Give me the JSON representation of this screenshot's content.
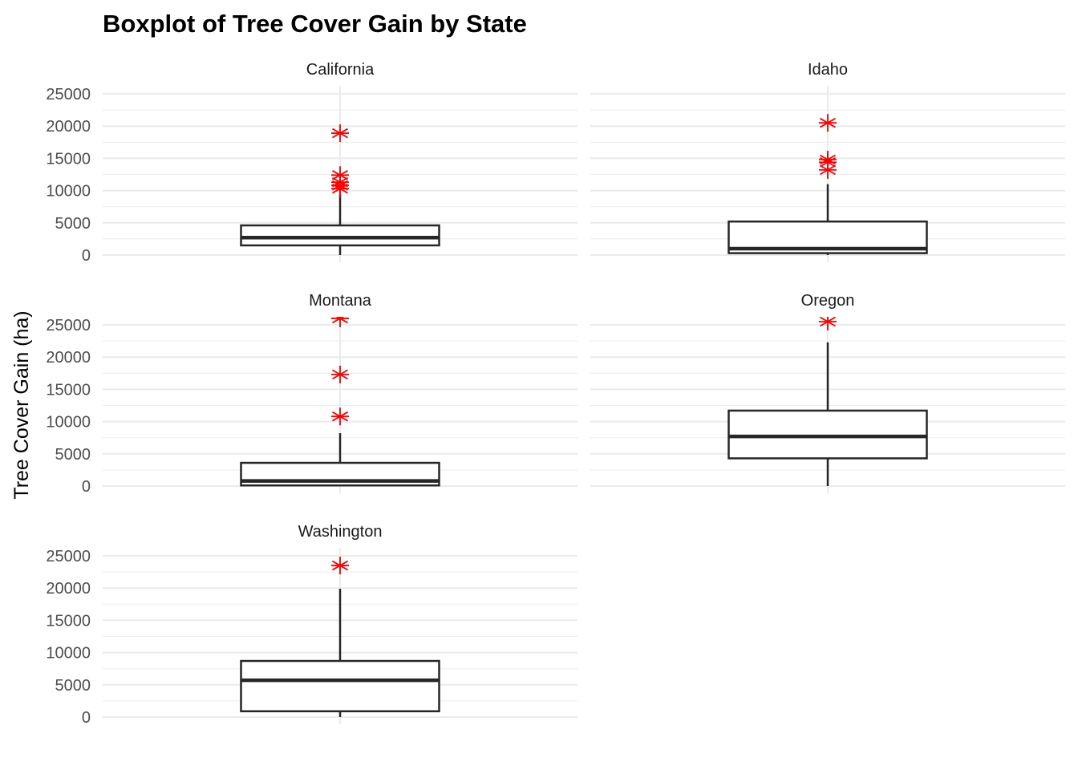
{
  "chart_data": {
    "type": "boxplot",
    "title": "Boxplot of Tree Cover Gain by State",
    "xlabel": "",
    "ylabel": "Tree Cover Gain (ha)",
    "ylim": [
      -1000,
      26000
    ],
    "yticks": [
      0,
      5000,
      10000,
      15000,
      20000,
      25000
    ],
    "grid": true,
    "facet_layout": "3 rows x 2 columns",
    "colors": {
      "box_line": "#262626",
      "outlier": "#ff0000",
      "grid": "#ebebeb",
      "background": "#ffffff"
    },
    "panels": [
      {
        "state": "California",
        "whisker_low": 0,
        "q1": 1500,
        "median": 2700,
        "q3": 4600,
        "whisker_high": 9400,
        "outliers": [
          10300,
          10800,
          11300,
          12400,
          18900
        ]
      },
      {
        "state": "Idaho",
        "whisker_low": 0,
        "q1": 300,
        "median": 1000,
        "q3": 5200,
        "whisker_high": 11000,
        "outliers": [
          13200,
          14400,
          14800,
          20500
        ]
      },
      {
        "state": "Montana",
        "whisker_low": 0,
        "q1": 100,
        "median": 800,
        "q3": 3600,
        "whisker_high": 8200,
        "outliers": [
          10800,
          17300,
          26000
        ]
      },
      {
        "state": "Oregon",
        "whisker_low": 0,
        "q1": 4300,
        "median": 7700,
        "q3": 11700,
        "whisker_high": 22300,
        "outliers": [
          25500
        ]
      },
      {
        "state": "Washington",
        "whisker_low": 0,
        "q1": 900,
        "median": 5700,
        "q3": 8700,
        "whisker_high": 19900,
        "outliers": [
          23500
        ]
      }
    ]
  }
}
